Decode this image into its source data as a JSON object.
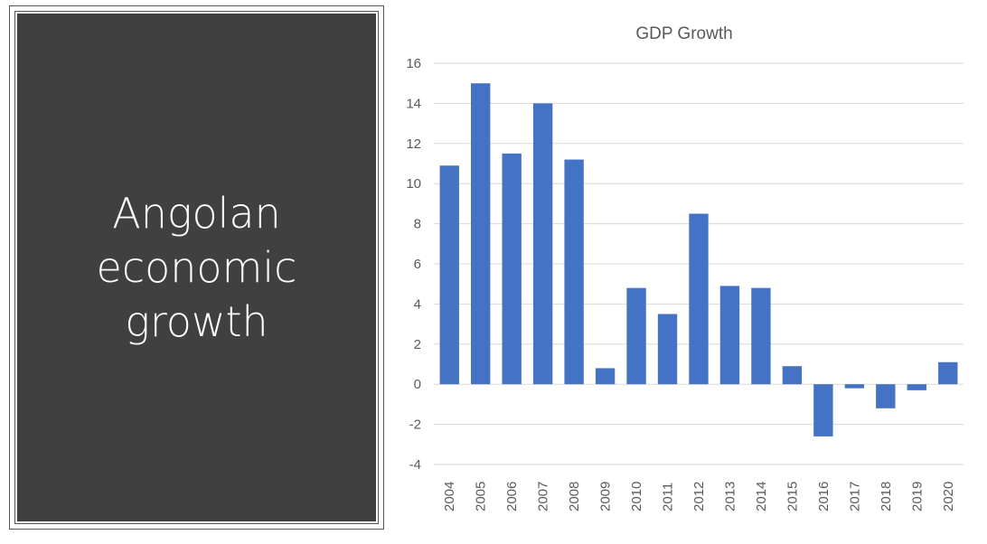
{
  "slide": {
    "title": "Angolan\neconomic\ngrowth"
  },
  "chart_data": {
    "type": "bar",
    "title": "GDP Growth",
    "xlabel": "",
    "ylabel": "",
    "categories": [
      "2004",
      "2005",
      "2006",
      "2007",
      "2008",
      "2009",
      "2010",
      "2011",
      "2012",
      "2013",
      "2014",
      "2015",
      "2016",
      "2017",
      "2018",
      "2019",
      "2020"
    ],
    "values": [
      10.9,
      15.0,
      11.5,
      14.0,
      11.2,
      0.8,
      4.8,
      3.5,
      8.5,
      4.9,
      4.8,
      0.9,
      -2.6,
      -0.2,
      -1.2,
      -0.3,
      1.1
    ],
    "ylim": [
      -4,
      16
    ],
    "yticks": [
      -4,
      -2,
      0,
      2,
      4,
      6,
      8,
      10,
      12,
      14,
      16
    ],
    "grid": true,
    "legend": "none",
    "bar_color": "#4472C4"
  }
}
